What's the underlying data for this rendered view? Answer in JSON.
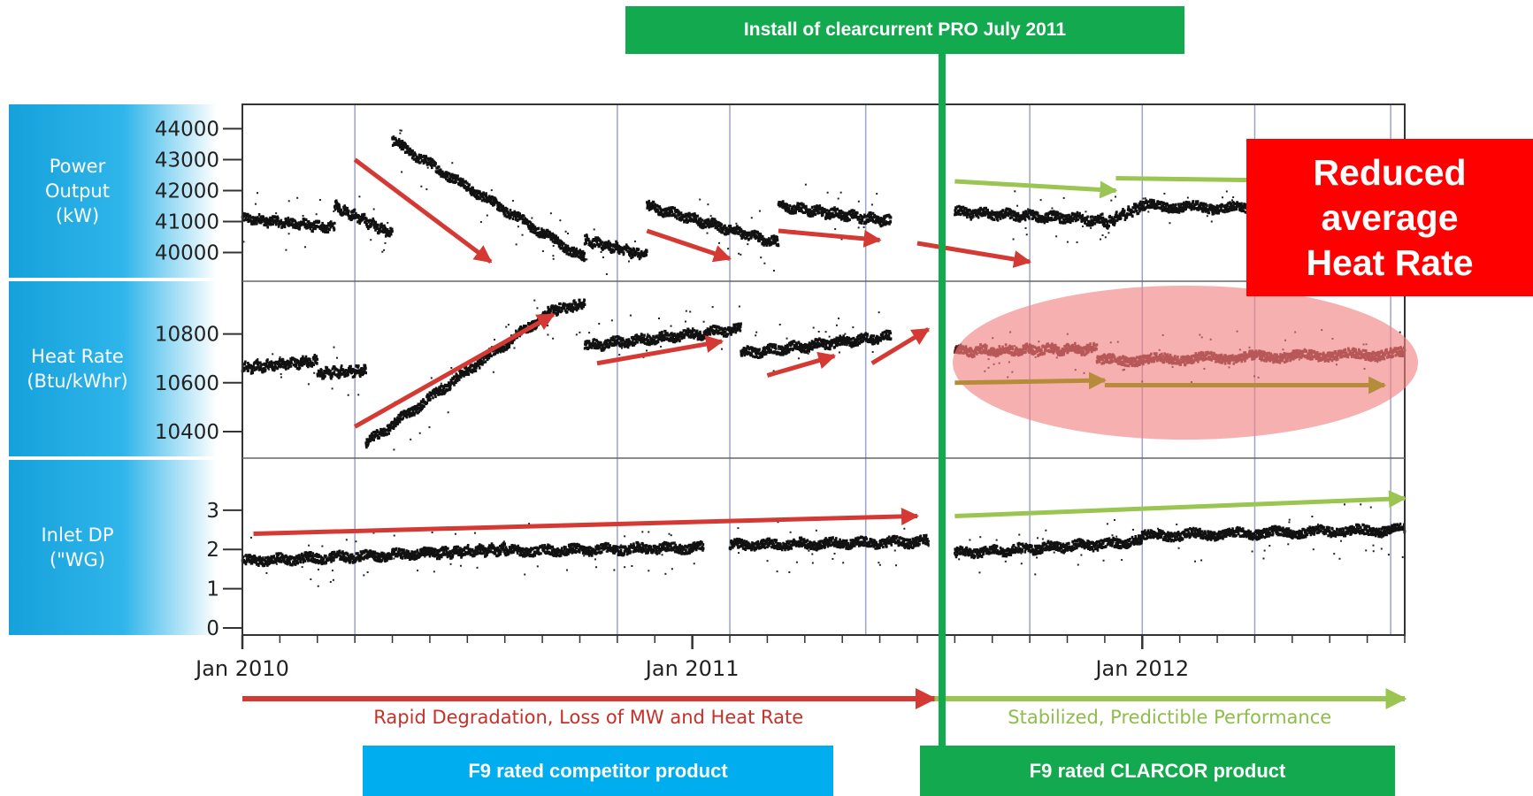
{
  "chart_data": {
    "type": "scatter",
    "title": "",
    "x_axis": {
      "label": "",
      "ticks": [
        "Jan 2010",
        "Jan 2011",
        "Jan 2012"
      ],
      "range": [
        "2010-01",
        "2012-08"
      ]
    },
    "event": {
      "label": "Install of clearcurrent PRO July 2011",
      "date": "2011-07"
    },
    "panels": [
      {
        "name": "Power Output (kW)",
        "label": "Power\nOutput\n(kW)",
        "ylim": [
          39300,
          44500
        ],
        "yticks": [
          40000,
          41000,
          42000,
          43000,
          44000
        ],
        "segments": [
          {
            "x": [
              "2010-01-01",
              "2010-03-15"
            ],
            "y": [
              41100,
              40800
            ],
            "period": "before"
          },
          {
            "x": [
              "2010-03-15",
              "2010-05-01"
            ],
            "y": [
              41500,
              40600
            ],
            "period": "before"
          },
          {
            "x": [
              "2010-05-01",
              "2010-10-05"
            ],
            "y": [
              43600,
              39800
            ],
            "period": "before"
          },
          {
            "x": [
              "2010-10-05",
              "2010-11-25"
            ],
            "y": [
              40400,
              39900
            ],
            "period": "before"
          },
          {
            "x": [
              "2010-11-25",
              "2011-03-10"
            ],
            "y": [
              41500,
              40300
            ],
            "period": "before"
          },
          {
            "x": [
              "2011-03-10",
              "2011-06-10"
            ],
            "y": [
              41500,
              41000
            ],
            "period": "before"
          },
          {
            "x": [
              "2011-08-01",
              "2011-11-30"
            ],
            "y": [
              41300,
              41050
            ],
            "period": "after"
          },
          {
            "x": [
              "2011-11-30",
              "2011-12-31"
            ],
            "y": [
              40900,
              41500
            ],
            "period": "after"
          },
          {
            "x": [
              "2011-12-31",
              "2012-08-01"
            ],
            "y": [
              41500,
              41300
            ],
            "period": "after"
          }
        ],
        "trend_arrows": [
          {
            "x": [
              "2010-04-01",
              "2010-07-20"
            ],
            "y": [
              43000,
              39700
            ],
            "color": "red"
          },
          {
            "x": [
              "2010-11-25",
              "2011-02-01"
            ],
            "y": [
              40700,
              39800
            ],
            "color": "red"
          },
          {
            "x": [
              "2011-03-10",
              "2011-06-01"
            ],
            "y": [
              40700,
              40400
            ],
            "color": "red"
          },
          {
            "x": [
              "2011-07-01",
              "2011-10-01"
            ],
            "y": [
              40300,
              39700
            ],
            "color": "red"
          },
          {
            "x": [
              "2011-08-01",
              "2011-12-10"
            ],
            "y": [
              42300,
              42000
            ],
            "color": "green"
          },
          {
            "x": [
              "2011-12-10",
              "2012-06-15"
            ],
            "y": [
              42400,
              42300
            ],
            "color": "green"
          }
        ]
      },
      {
        "name": "Heat Rate (Btu/kWhr)",
        "label": "Heat Rate\n(Btu/kWhr)",
        "ylim": [
          10320,
          10980
        ],
        "yticks": [
          10400,
          10600,
          10800
        ],
        "segments": [
          {
            "x": [
              "2010-01-01",
              "2010-03-01"
            ],
            "y": [
              10660,
              10690
            ],
            "period": "before"
          },
          {
            "x": [
              "2010-03-01",
              "2010-04-10"
            ],
            "y": [
              10640,
              10650
            ],
            "period": "before"
          },
          {
            "x": [
              "2010-04-10",
              "2010-09-10"
            ],
            "y": [
              10350,
              10900
            ],
            "period": "before"
          },
          {
            "x": [
              "2010-09-10",
              "2010-10-05"
            ],
            "y": [
              10900,
              10920
            ],
            "period": "before"
          },
          {
            "x": [
              "2010-10-05",
              "2011-02-10"
            ],
            "y": [
              10750,
              10820
            ],
            "period": "before"
          },
          {
            "x": [
              "2011-02-10",
              "2011-06-10"
            ],
            "y": [
              10720,
              10790
            ],
            "period": "before"
          },
          {
            "x": [
              "2011-08-01",
              "2011-11-25"
            ],
            "y": [
              10730,
              10740
            ],
            "period": "after"
          },
          {
            "x": [
              "2011-11-25",
              "2012-08-01"
            ],
            "y": [
              10690,
              10720
            ],
            "period": "after"
          }
        ],
        "trend_arrows": [
          {
            "x": [
              "2010-04-01",
              "2010-09-10"
            ],
            "y": [
              10420,
              10880
            ],
            "color": "red"
          },
          {
            "x": [
              "2010-10-15",
              "2011-01-25"
            ],
            "y": [
              10680,
              10770
            ],
            "color": "red"
          },
          {
            "x": [
              "2011-03-01",
              "2011-04-25"
            ],
            "y": [
              10630,
              10710
            ],
            "color": "red"
          },
          {
            "x": [
              "2011-05-25",
              "2011-07-10"
            ],
            "y": [
              10680,
              10820
            ],
            "color": "red"
          },
          {
            "x": [
              "2011-08-01",
              "2011-12-01"
            ],
            "y": [
              10600,
              10610
            ],
            "color": "olive"
          },
          {
            "x": [
              "2011-12-01",
              "2012-07-15"
            ],
            "y": [
              10590,
              10590
            ],
            "color": "olive"
          }
        ]
      },
      {
        "name": "Inlet DP (\"WG)",
        "label": "Inlet DP\n(\"WG)",
        "ylim": [
          0,
          4.1
        ],
        "yticks": [
          0,
          1,
          2,
          3
        ],
        "segments": [
          {
            "x": [
              "2010-01-01",
              "2010-06-01"
            ],
            "y": [
              1.7,
              1.9
            ],
            "period": "before"
          },
          {
            "x": [
              "2010-06-01",
              "2010-08-01"
            ],
            "y": [
              1.9,
              2.0
            ],
            "period": "before"
          },
          {
            "x": [
              "2010-08-01",
              "2011-01-10"
            ],
            "y": [
              1.95,
              2.05
            ],
            "period": "before"
          },
          {
            "x": [
              "2011-02-01",
              "2011-07-10"
            ],
            "y": [
              2.1,
              2.2
            ],
            "period": "before"
          },
          {
            "x": [
              "2011-08-01",
              "2011-12-31"
            ],
            "y": [
              1.9,
              2.2
            ],
            "period": "after"
          },
          {
            "x": [
              "2011-12-31",
              "2012-08-01"
            ],
            "y": [
              2.35,
              2.5
            ],
            "period": "after"
          }
        ],
        "trend_arrows": [
          {
            "x": [
              "2010-01-10",
              "2011-07-01"
            ],
            "y": [
              2.4,
              2.85
            ],
            "color": "red"
          },
          {
            "x": [
              "2011-08-01",
              "2012-08-01"
            ],
            "y": [
              2.85,
              3.3
            ],
            "color": "green"
          }
        ]
      }
    ],
    "period_arrows": [
      {
        "label": "Rapid Degradation, Loss of MW and Heat Rate",
        "x": [
          "2010-01-01",
          "2011-07-15"
        ],
        "color": "red"
      },
      {
        "label": "Stabilized, Predictible Performance",
        "x": [
          "2011-07-15",
          "2012-08-01"
        ],
        "color": "green"
      }
    ],
    "highlight": {
      "label": "Reduced average Heat Rate",
      "panel": "Heat Rate (Btu/kWhr)"
    }
  },
  "tags": {
    "install": "Install of clearcurrent PRO July 2011",
    "competitor": "F9 rated competitor product",
    "clarcor": "F9 rated CLARCOR product",
    "callout_lines": [
      "Reduced",
      "average",
      "Heat Rate"
    ]
  },
  "colors": {
    "red_arrow": "#d43a33",
    "green_arrow": "#9ac552",
    "olive_arrow": "#b58d3a",
    "install_line": "#13aa4f",
    "install_tag": "#13aa4f",
    "competitor_tag": "#00adef",
    "clarcor_tag": "#13aa4f",
    "callout_bg": "#ff0000",
    "panel_label_bg": "#1aa7e0",
    "red_text": "#c5312a",
    "green_text": "#8dbd4a"
  }
}
